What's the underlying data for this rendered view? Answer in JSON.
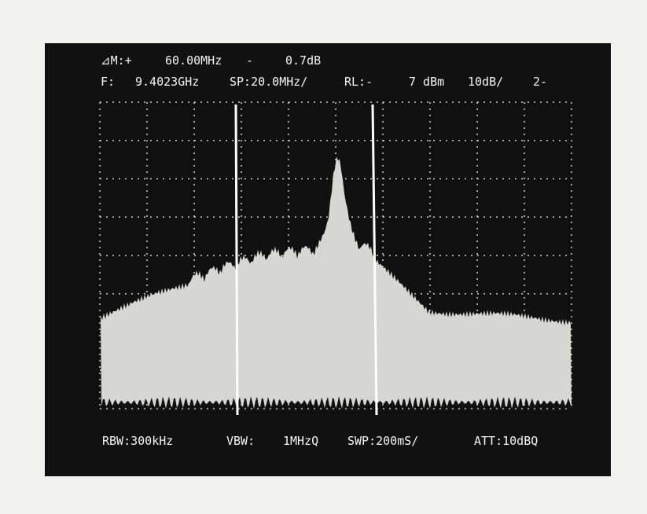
{
  "header": {
    "line1": [
      "⊿M:+",
      "60.00MHz",
      "-",
      "0.7dB"
    ],
    "line2": [
      "F:",
      "9.4023GHz",
      "SP:20.0MHz/",
      "RL:-",
      "7 dBm",
      "10dB/",
      "2-"
    ]
  },
  "footer": [
    "RBW:300kHz",
    "VBW:",
    "1MHzQ",
    "SWP:200mS/",
    "ATT:10dBQ"
  ]
}
